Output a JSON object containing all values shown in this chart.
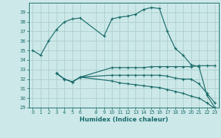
{
  "xlabel": "Humidex (Indice chaleur)",
  "bg_color": "#cce8e8",
  "line_color": "#1a6b6b",
  "grid_color": "#b0d0d0",
  "ylim": [
    29,
    40
  ],
  "xlim": [
    -0.5,
    23.5
  ],
  "yticks": [
    29,
    30,
    31,
    32,
    33,
    34,
    35,
    36,
    37,
    38,
    39
  ],
  "xticks": [
    0,
    1,
    2,
    3,
    4,
    5,
    6,
    8,
    9,
    10,
    11,
    12,
    13,
    14,
    15,
    16,
    17,
    18,
    19,
    20,
    21,
    22,
    23
  ],
  "lines": [
    {
      "x": [
        0,
        1,
        2,
        3,
        4,
        5,
        6,
        9,
        10,
        11,
        12,
        13,
        14,
        15,
        16,
        17,
        18,
        19,
        20,
        21,
        22,
        23
      ],
      "y": [
        35.0,
        34.5,
        36.0,
        37.2,
        38.0,
        38.3,
        38.4,
        36.5,
        38.3,
        38.5,
        38.6,
        38.8,
        39.3,
        39.5,
        39.4,
        37.0,
        35.2,
        34.5,
        33.5,
        33.3,
        30.3,
        29.0
      ]
    },
    {
      "x": [
        3,
        4,
        5,
        6,
        10,
        11,
        12,
        13,
        14,
        15,
        16,
        17,
        18,
        19,
        20,
        21,
        22,
        23
      ],
      "y": [
        32.6,
        32.0,
        31.7,
        32.2,
        33.2,
        33.2,
        33.2,
        33.2,
        33.2,
        33.3,
        33.3,
        33.3,
        33.3,
        33.3,
        33.3,
        33.4,
        33.4,
        33.4
      ]
    },
    {
      "x": [
        3,
        4,
        5,
        6,
        10,
        11,
        12,
        13,
        14,
        15,
        16,
        17,
        18,
        19,
        20,
        21,
        22,
        23
      ],
      "y": [
        32.6,
        32.0,
        31.7,
        32.2,
        32.4,
        32.4,
        32.4,
        32.4,
        32.4,
        32.4,
        32.4,
        32.3,
        32.1,
        32.0,
        32.0,
        31.5,
        30.5,
        29.5
      ]
    },
    {
      "x": [
        3,
        4,
        5,
        6,
        10,
        11,
        12,
        13,
        14,
        15,
        16,
        17,
        18,
        19,
        20,
        21,
        22,
        23
      ],
      "y": [
        32.6,
        32.0,
        31.7,
        32.2,
        31.8,
        31.6,
        31.5,
        31.4,
        31.3,
        31.2,
        31.1,
        30.9,
        30.7,
        30.5,
        30.2,
        30.0,
        29.5,
        28.9
      ]
    }
  ]
}
